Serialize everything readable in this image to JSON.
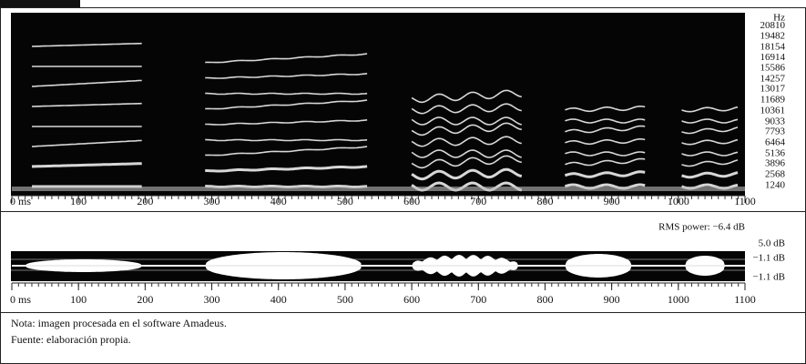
{
  "spectrogram": {
    "y_unit": "Hz",
    "ylim": [
      0,
      22400
    ],
    "yticks": [
      20810,
      19482,
      18154,
      16914,
      15586,
      14257,
      13017,
      11689,
      10361,
      9033,
      7793,
      6464,
      5136,
      3896,
      2568,
      1240
    ],
    "xlim": [
      0,
      1100
    ],
    "xticks": [
      {
        "value": 0,
        "label": "0 ms"
      },
      100,
      200,
      300,
      400,
      500,
      600,
      700,
      800,
      900,
      1000,
      1100
    ]
  },
  "waveform": {
    "rms": "RMS power: −6.4 dB",
    "level_labels": [
      "5.0 dB",
      "−1.1 dB",
      "−1.1 dB"
    ],
    "xlim": [
      0,
      1100
    ],
    "xticks": [
      {
        "value": 0,
        "label": "0 ms"
      },
      100,
      200,
      300,
      400,
      500,
      600,
      700,
      800,
      900,
      1000,
      1100
    ]
  },
  "note": "Nota: imagen procesada en el software Amadeus.",
  "source": "Fuente: elaboración propia."
}
